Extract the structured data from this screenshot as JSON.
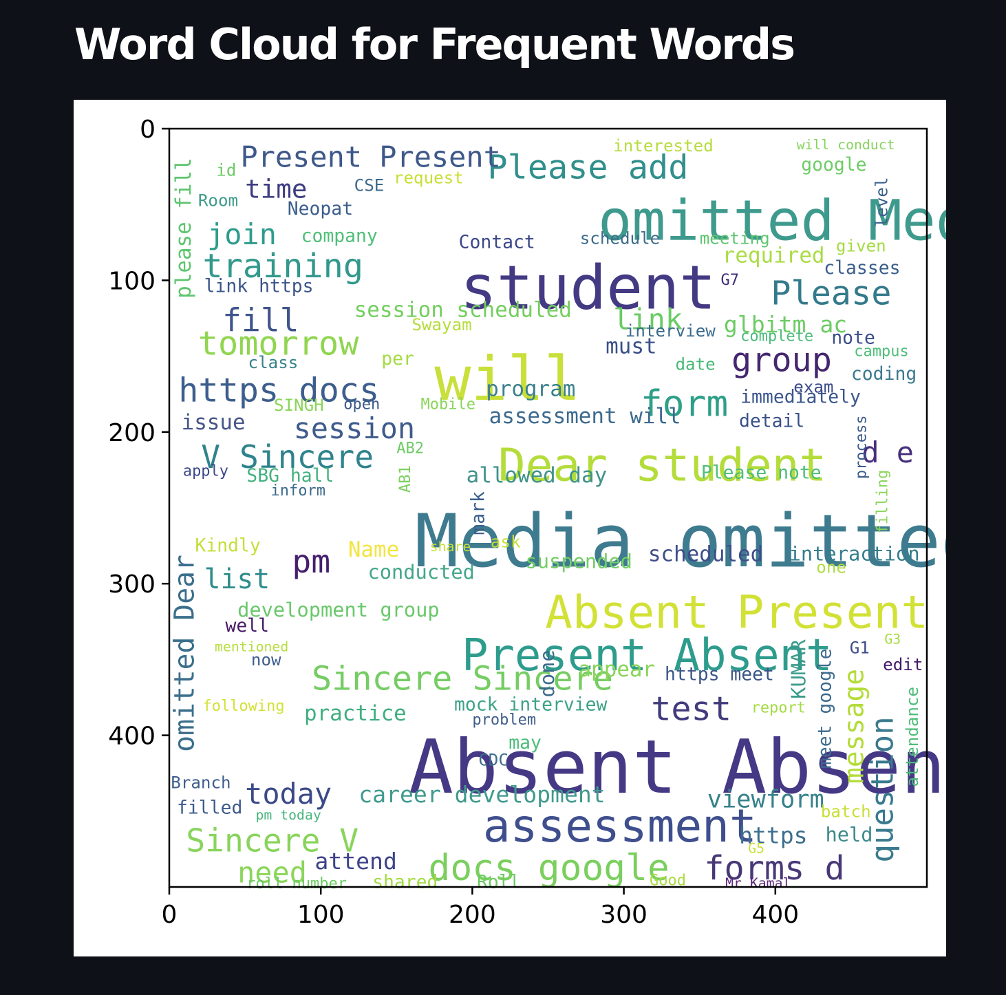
{
  "page": {
    "title": "Word Cloud for Frequent Words"
  },
  "chart_data": {
    "type": "wordcloud",
    "title": "",
    "xlabel": "",
    "ylabel": "",
    "xlim": [
      0,
      500
    ],
    "ylim": [
      0,
      500
    ],
    "y_inverted": true,
    "xticks": [
      0,
      100,
      200,
      300,
      400
    ],
    "yticks": [
      0,
      100,
      200,
      300,
      400
    ],
    "grid": false,
    "colormap": "viridis",
    "words": [
      {
        "text": "Media omitted",
        "x": 162,
        "y": 253,
        "size": 48,
        "color": "#3e7b8f"
      },
      {
        "text": "Absent Absent",
        "x": 158,
        "y": 402,
        "size": 49,
        "color": "#453885"
      },
      {
        "text": "student",
        "x": 192,
        "y": 89,
        "size": 40,
        "color": "#433a83"
      },
      {
        "text": "will",
        "x": 175,
        "y": 149,
        "size": 40,
        "color": "#c9df3a"
      },
      {
        "text": "omitted Media",
        "x": 283,
        "y": 46,
        "size": 37,
        "color": "#3e9a8d"
      },
      {
        "text": "Absent Present",
        "x": 248,
        "y": 307,
        "size": 30,
        "color": "#d2e136"
      },
      {
        "text": "Dear student",
        "x": 217,
        "y": 210,
        "size": 30,
        "color": "#b4dc3b"
      },
      {
        "text": "assessment",
        "x": 207,
        "y": 448,
        "size": 30,
        "color": "#3f4f8d"
      },
      {
        "text": "Present Absent",
        "x": 193,
        "y": 336,
        "size": 29,
        "color": "#2e9c8d"
      },
      {
        "text": "docs google",
        "x": 171,
        "y": 478,
        "size": 24,
        "color": "#7bcf5e"
      },
      {
        "text": "Please add",
        "x": 210,
        "y": 17,
        "size": 22,
        "color": "#318f8c"
      },
      {
        "text": "Sincere Sincere",
        "x": 94,
        "y": 354,
        "size": 22,
        "color": "#75cd63"
      },
      {
        "text": "V Sincere",
        "x": 21,
        "y": 208,
        "size": 21,
        "color": "#2f838c"
      },
      {
        "text": "https docs",
        "x": 6,
        "y": 164,
        "size": 22,
        "color": "#3d5e8d"
      },
      {
        "text": "tomorrow",
        "x": 19,
        "y": 133,
        "size": 22,
        "color": "#90d550"
      },
      {
        "text": "training",
        "x": 22,
        "y": 82,
        "size": 22,
        "color": "#32988c"
      },
      {
        "text": "form",
        "x": 311,
        "y": 172,
        "size": 24,
        "color": "#2e9f89"
      },
      {
        "text": "group",
        "x": 371,
        "y": 144,
        "size": 22,
        "color": "#45266f"
      },
      {
        "text": "Please",
        "x": 397,
        "y": 100,
        "size": 22,
        "color": "#337a8b"
      },
      {
        "text": "session",
        "x": 82,
        "y": 190,
        "size": 19,
        "color": "#3e5b8b"
      },
      {
        "text": "test",
        "x": 318,
        "y": 374,
        "size": 22,
        "color": "#413b7c"
      },
      {
        "text": "forms d",
        "x": 353,
        "y": 479,
        "size": 22,
        "color": "#483877"
      },
      {
        "text": "today",
        "x": 50,
        "y": 431,
        "size": 19,
        "color": "#3b4a88"
      },
      {
        "text": "Sincere V",
        "x": 11,
        "y": 461,
        "size": 21,
        "color": "#88d45b"
      },
      {
        "text": "need",
        "x": 45,
        "y": 483,
        "size": 19,
        "color": "#8ad55a"
      },
      {
        "text": "attend",
        "x": 96,
        "y": 477,
        "size": 15,
        "color": "#3d4289"
      },
      {
        "text": "career development",
        "x": 125,
        "y": 433,
        "size": 15,
        "color": "#3f9a8d"
      },
      {
        "text": "viewform",
        "x": 355,
        "y": 436,
        "size": 16,
        "color": "#36818b"
      },
      {
        "text": "https",
        "x": 376,
        "y": 460,
        "size": 15,
        "color": "#3c6e8d"
      },
      {
        "text": "held",
        "x": 433,
        "y": 460,
        "size": 13,
        "color": "#3e8a8a"
      },
      {
        "text": "fill",
        "x": 35,
        "y": 118,
        "size": 21,
        "color": "#3f548b"
      },
      {
        "text": "join",
        "x": 25,
        "y": 62,
        "size": 19,
        "color": "#2e9c8d"
      },
      {
        "text": "time",
        "x": 50,
        "y": 33,
        "size": 17,
        "color": "#3e3d82"
      },
      {
        "text": "Present Present",
        "x": 47,
        "y": 11,
        "size": 19,
        "color": "#3e5889"
      },
      {
        "text": "link",
        "x": 293,
        "y": 118,
        "size": 19,
        "color": "#6bcb66"
      },
      {
        "text": "glbitm ac",
        "x": 366,
        "y": 123,
        "size": 15,
        "color": "#6ccb64"
      },
      {
        "text": "required",
        "x": 365,
        "y": 78,
        "size": 14,
        "color": "#a9dc43"
      },
      {
        "text": "session scheduled",
        "x": 122,
        "y": 114,
        "size": 14,
        "color": "#74ce5f"
      },
      {
        "text": "pm",
        "x": 81,
        "y": 277,
        "size": 21,
        "color": "#461f6d"
      },
      {
        "text": "list",
        "x": 23,
        "y": 290,
        "size": 18,
        "color": "#2f8c8c"
      },
      {
        "text": "scheduled",
        "x": 316,
        "y": 275,
        "size": 14,
        "color": "#3e4d8a"
      },
      {
        "text": "interaction",
        "x": 409,
        "y": 275,
        "size": 13,
        "color": "#347e8c"
      },
      {
        "text": "d e",
        "x": 457,
        "y": 206,
        "size": 19,
        "color": "#472f7d"
      },
      {
        "text": "must",
        "x": 288,
        "y": 138,
        "size": 14,
        "color": "#3a4f89"
      },
      {
        "text": "program",
        "x": 209,
        "y": 166,
        "size": 14,
        "color": "#3a818c"
      },
      {
        "text": "issue",
        "x": 8,
        "y": 188,
        "size": 14,
        "color": "#475689"
      },
      {
        "text": "assessment will",
        "x": 211,
        "y": 184,
        "size": 14,
        "color": "#3d6a8e"
      },
      {
        "text": "allowed day",
        "x": 196,
        "y": 223,
        "size": 14,
        "color": "#3f938a"
      },
      {
        "text": "immediately",
        "x": 377,
        "y": 172,
        "size": 12,
        "color": "#3a558c"
      },
      {
        "text": "detail",
        "x": 376,
        "y": 188,
        "size": 12,
        "color": "#3a508a"
      },
      {
        "text": "Please note",
        "x": 351,
        "y": 222,
        "size": 12,
        "color": "#4fbe78"
      },
      {
        "text": "coding",
        "x": 450,
        "y": 157,
        "size": 12,
        "color": "#3c7a8e"
      },
      {
        "text": "note",
        "x": 437,
        "y": 133,
        "size": 12,
        "color": "#3b4c89"
      },
      {
        "text": "classes",
        "x": 432,
        "y": 87,
        "size": 12,
        "color": "#3a5f8b"
      },
      {
        "text": "given",
        "x": 440,
        "y": 73,
        "size": 11,
        "color": "#a4db43"
      },
      {
        "text": "google",
        "x": 417,
        "y": 19,
        "size": 12,
        "color": "#6dcb65"
      },
      {
        "text": "will conduct",
        "x": 414,
        "y": 7,
        "size": 9,
        "color": "#85d45c"
      },
      {
        "text": "interested",
        "x": 293,
        "y": 7,
        "size": 11,
        "color": "#b6dd3e"
      },
      {
        "text": "request",
        "x": 148,
        "y": 28,
        "size": 11,
        "color": "#c8df35"
      },
      {
        "text": "CSE",
        "x": 122,
        "y": 33,
        "size": 11,
        "color": "#3e6a8d"
      },
      {
        "text": "id",
        "x": 31,
        "y": 23,
        "size": 11,
        "color": "#6ccb65"
      },
      {
        "text": "Room",
        "x": 19,
        "y": 43,
        "size": 11,
        "color": "#3f9b8b"
      },
      {
        "text": "Neopat",
        "x": 78,
        "y": 48,
        "size": 12,
        "color": "#3b5e8c"
      },
      {
        "text": "company",
        "x": 87,
        "y": 66,
        "size": 12,
        "color": "#4fbf78"
      },
      {
        "text": "Contact",
        "x": 191,
        "y": 70,
        "size": 12,
        "color": "#3c4889"
      },
      {
        "text": "schedule",
        "x": 271,
        "y": 68,
        "size": 11,
        "color": "#3d6c8c"
      },
      {
        "text": "meeting",
        "x": 350,
        "y": 68,
        "size": 11,
        "color": "#5ec56f"
      },
      {
        "text": "G7",
        "x": 364,
        "y": 96,
        "size": 10,
        "color": "#3e2c78"
      },
      {
        "text": "link https",
        "x": 23,
        "y": 99,
        "size": 12,
        "color": "#3c568a"
      },
      {
        "text": "Swayam",
        "x": 160,
        "y": 125,
        "size": 11,
        "color": "#b6dd3e"
      },
      {
        "text": "interview",
        "x": 301,
        "y": 129,
        "size": 11,
        "color": "#3a6a8c"
      },
      {
        "text": "complete",
        "x": 377,
        "y": 133,
        "size": 10,
        "color": "#4bbc7a"
      },
      {
        "text": "campus",
        "x": 452,
        "y": 143,
        "size": 10,
        "color": "#4fbe78"
      },
      {
        "text": "class",
        "x": 52,
        "y": 150,
        "size": 11,
        "color": "#36818b"
      },
      {
        "text": "per",
        "x": 140,
        "y": 147,
        "size": 12,
        "color": "#a4db43"
      },
      {
        "text": "date",
        "x": 334,
        "y": 151,
        "size": 11,
        "color": "#4ab877"
      },
      {
        "text": "exam",
        "x": 412,
        "y": 166,
        "size": 11,
        "color": "#3d4b88"
      },
      {
        "text": "SINGH",
        "x": 69,
        "y": 178,
        "size": 11,
        "color": "#8ad55a"
      },
      {
        "text": "open",
        "x": 115,
        "y": 178,
        "size": 10,
        "color": "#3c5a8c"
      },
      {
        "text": "Mobile",
        "x": 166,
        "y": 178,
        "size": 10,
        "color": "#8ad55a"
      },
      {
        "text": "AB2",
        "x": 150,
        "y": 207,
        "size": 10,
        "color": "#6ccb65"
      },
      {
        "text": "apply",
        "x": 9,
        "y": 222,
        "size": 10,
        "color": "#3c4889"
      },
      {
        "text": "SBG hall",
        "x": 51,
        "y": 224,
        "size": 12,
        "color": "#43b17f"
      },
      {
        "text": "inform",
        "x": 67,
        "y": 235,
        "size": 10,
        "color": "#3c6a8c"
      },
      {
        "text": "Kindly",
        "x": 17,
        "y": 270,
        "size": 12,
        "color": "#c4df3b"
      },
      {
        "text": "Name",
        "x": 118,
        "y": 272,
        "size": 14,
        "color": "#f2e541"
      },
      {
        "text": "share",
        "x": 172,
        "y": 272,
        "size": 9,
        "color": "#c8df35"
      },
      {
        "text": "ask",
        "x": 212,
        "y": 268,
        "size": 11,
        "color": "#c8df35"
      },
      {
        "text": "conducted",
        "x": 131,
        "y": 287,
        "size": 13,
        "color": "#43a689"
      },
      {
        "text": "suspended",
        "x": 235,
        "y": 280,
        "size": 13,
        "color": "#73cd64"
      },
      {
        "text": "one",
        "x": 427,
        "y": 285,
        "size": 11,
        "color": "#b0dc44"
      },
      {
        "text": "development group",
        "x": 45,
        "y": 312,
        "size": 13,
        "color": "#69c86a"
      },
      {
        "text": "well",
        "x": 37,
        "y": 323,
        "size": 12,
        "color": "#471b67"
      },
      {
        "text": "mentioned",
        "x": 30,
        "y": 338,
        "size": 9,
        "color": "#b6dd3e"
      },
      {
        "text": "now",
        "x": 54,
        "y": 346,
        "size": 11,
        "color": "#3f5e8c"
      },
      {
        "text": "following",
        "x": 22,
        "y": 377,
        "size": 10,
        "color": "#d2e136"
      },
      {
        "text": "practice",
        "x": 89,
        "y": 380,
        "size": 14,
        "color": "#40ae80"
      },
      {
        "text": "mock interview",
        "x": 188,
        "y": 375,
        "size": 12,
        "color": "#3da286"
      },
      {
        "text": "problem",
        "x": 200,
        "y": 386,
        "size": 10,
        "color": "#3f5e8c"
      },
      {
        "text": "appear",
        "x": 270,
        "y": 351,
        "size": 14,
        "color": "#8ad55a"
      },
      {
        "text": "https meet",
        "x": 327,
        "y": 355,
        "size": 12,
        "color": "#3c568a"
      },
      {
        "text": "report",
        "x": 384,
        "y": 378,
        "size": 10,
        "color": "#a4db43"
      },
      {
        "text": "G1",
        "x": 449,
        "y": 338,
        "size": 11,
        "color": "#3d4a88"
      },
      {
        "text": "G3",
        "x": 472,
        "y": 333,
        "size": 9,
        "color": "#a4db43"
      },
      {
        "text": "edit",
        "x": 471,
        "y": 349,
        "size": 11,
        "color": "#44176b"
      },
      {
        "text": "may",
        "x": 224,
        "y": 400,
        "size": 12,
        "color": "#4bbc7a"
      },
      {
        "text": "CDC",
        "x": 204,
        "y": 412,
        "size": 11,
        "color": "#3c6e8d"
      },
      {
        "text": "Branch",
        "x": 1,
        "y": 427,
        "size": 11,
        "color": "#3e5e8c"
      },
      {
        "text": "filled",
        "x": 5,
        "y": 443,
        "size": 12,
        "color": "#3d5b8c"
      },
      {
        "text": "pm today",
        "x": 57,
        "y": 449,
        "size": 9,
        "color": "#46b47c"
      },
      {
        "text": "batch",
        "x": 430,
        "y": 446,
        "size": 11,
        "color": "#c8df35"
      },
      {
        "text": "G5",
        "x": 382,
        "y": 471,
        "size": 9,
        "color": "#c8df35"
      },
      {
        "text": "roll number",
        "x": 51,
        "y": 494,
        "size": 10,
        "color": "#6ccb65"
      },
      {
        "text": "shared",
        "x": 134,
        "y": 492,
        "size": 12,
        "color": "#a4db43"
      },
      {
        "text": "Roll",
        "x": 203,
        "y": 492,
        "size": 12,
        "color": "#6ccb65"
      },
      {
        "text": "Good",
        "x": 317,
        "y": 492,
        "size": 10,
        "color": "#a9dc43"
      },
      {
        "text": "Mr Kamal",
        "x": 367,
        "y": 494,
        "size": 9,
        "color": "#5d2a79"
      },
      {
        "text": "please fill",
        "x": 4,
        "y": 112,
        "size": 14,
        "color": "#5ec56f",
        "rotate": -90
      },
      {
        "text": "omitted Dear",
        "x": 3,
        "y": 411,
        "size": 18,
        "color": "#3a6e8c",
        "rotate": -90
      },
      {
        "text": "level",
        "x": 466,
        "y": 65,
        "size": 11,
        "color": "#3a608c",
        "rotate": -90
      },
      {
        "text": "AB1",
        "x": 152,
        "y": 240,
        "size": 10,
        "color": "#7bcf5e",
        "rotate": -90
      },
      {
        "text": "mark",
        "x": 199,
        "y": 268,
        "size": 12,
        "color": "#3a5f8b",
        "rotate": -90
      },
      {
        "text": "process",
        "x": 453,
        "y": 231,
        "size": 10,
        "color": "#3c5a8c",
        "rotate": -90
      },
      {
        "text": "filling",
        "x": 467,
        "y": 267,
        "size": 10,
        "color": "#8ad55a",
        "rotate": -90
      },
      {
        "text": "done",
        "x": 244,
        "y": 375,
        "size": 13,
        "color": "#3c6a8c",
        "rotate": -90
      },
      {
        "text": "KUMAR",
        "x": 410,
        "y": 376,
        "size": 13,
        "color": "#3d9b8b",
        "rotate": -90
      },
      {
        "text": "meet google",
        "x": 428,
        "y": 422,
        "size": 12,
        "color": "#3e6a8d",
        "rotate": -90
      },
      {
        "text": "message",
        "x": 445,
        "y": 432,
        "size": 18,
        "color": "#b4dc3b",
        "rotate": -90
      },
      {
        "text": "question",
        "x": 463,
        "y": 484,
        "size": 20,
        "color": "#3a7a8e",
        "rotate": -90
      },
      {
        "text": "attendance",
        "x": 486,
        "y": 434,
        "size": 11,
        "color": "#4dbc79",
        "rotate": -90
      }
    ]
  }
}
